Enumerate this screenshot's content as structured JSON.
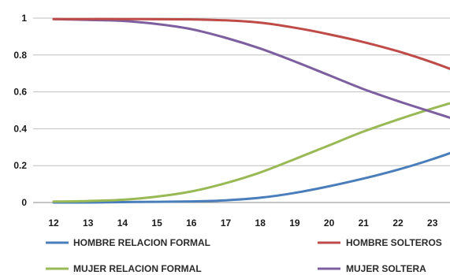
{
  "chart_data": {
    "type": "line",
    "x": [
      12,
      13,
      14,
      15,
      16,
      17,
      18,
      19,
      20,
      21,
      22,
      23,
      24
    ],
    "x_ticks": [
      12,
      13,
      14,
      15,
      16,
      17,
      18,
      19,
      20,
      21,
      22,
      23
    ],
    "y_ticks": [
      "0",
      "0.2",
      "0.4",
      "0.6",
      "0.8",
      "1"
    ],
    "ylim": [
      0,
      1
    ],
    "grid": true,
    "legend_position": "bottom",
    "series": [
      {
        "name": "HOMBRE RELACION FORMAL",
        "color": "#4a7ebb",
        "values": [
          0.0,
          0.0,
          0.002,
          0.004,
          0.006,
          0.012,
          0.026,
          0.052,
          0.088,
          0.13,
          0.178,
          0.235,
          0.3
        ]
      },
      {
        "name": "HOMBRE SOLTEROS",
        "color": "#be4b48",
        "values": [
          0.995,
          0.995,
          0.995,
          0.994,
          0.993,
          0.988,
          0.975,
          0.948,
          0.912,
          0.87,
          0.82,
          0.76,
          0.69
        ]
      },
      {
        "name": "MUJER RELACION FORMAL",
        "color": "#98b954",
        "values": [
          0.005,
          0.008,
          0.015,
          0.032,
          0.06,
          0.105,
          0.163,
          0.235,
          0.31,
          0.385,
          0.45,
          0.51,
          0.565
        ]
      },
      {
        "name": "MUJER SOLTERA",
        "color": "#7d5fa0",
        "values": [
          0.995,
          0.99,
          0.985,
          0.968,
          0.94,
          0.893,
          0.835,
          0.765,
          0.69,
          0.615,
          0.55,
          0.49,
          0.43
        ]
      }
    ]
  }
}
